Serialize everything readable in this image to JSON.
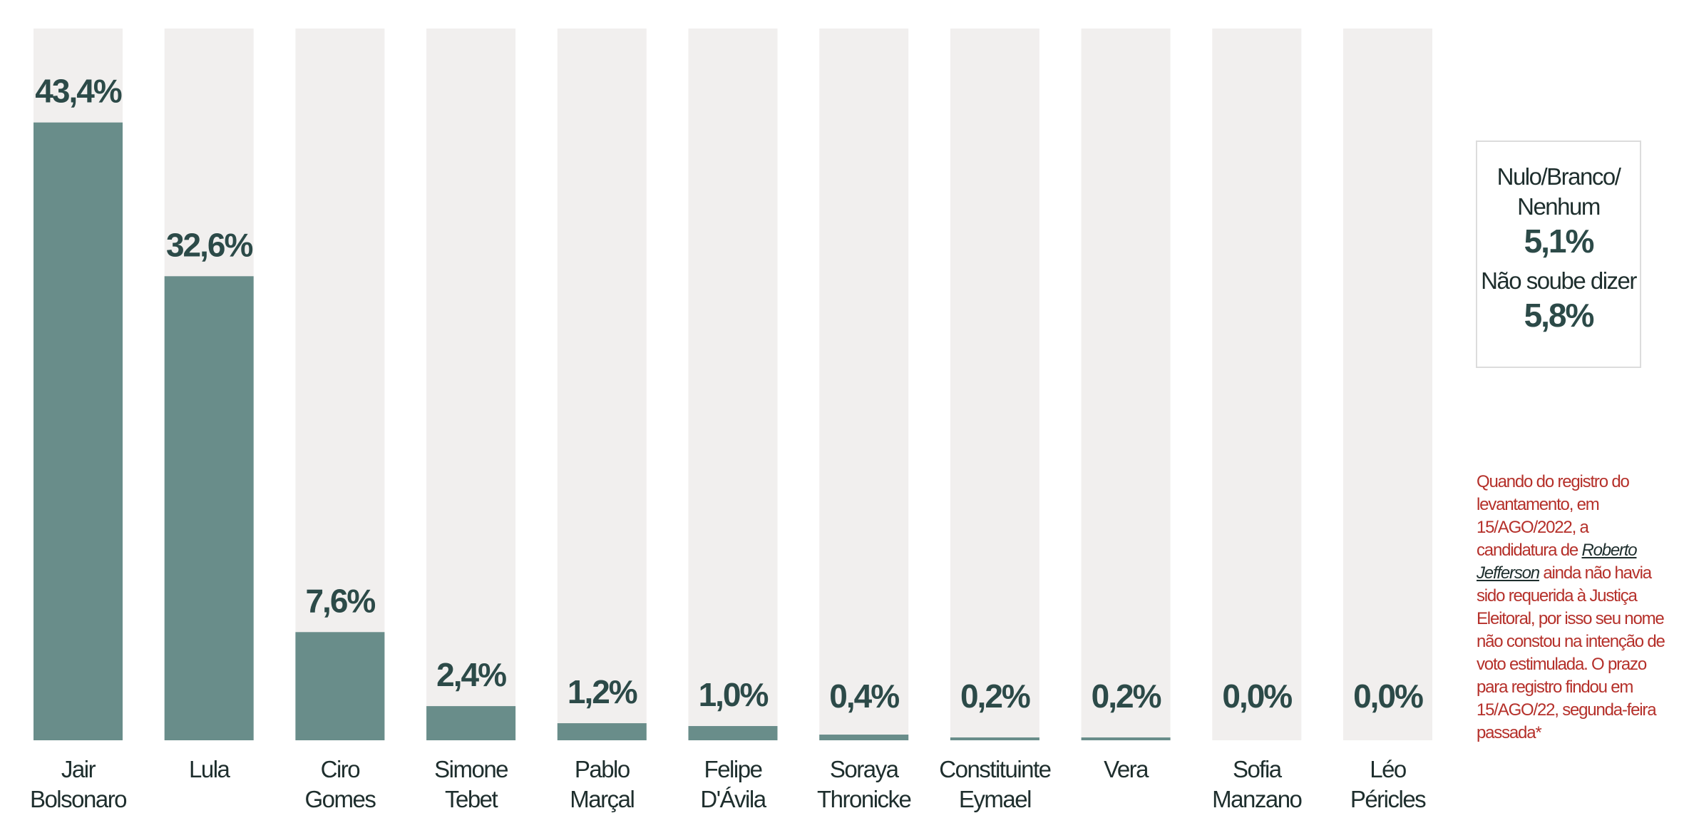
{
  "chart_data": {
    "type": "bar",
    "categories": [
      [
        "Jair",
        "Bolsonaro"
      ],
      [
        "Lula"
      ],
      [
        "Ciro",
        "Gomes"
      ],
      [
        "Simone",
        "Tebet"
      ],
      [
        "Pablo",
        "Marçal"
      ],
      [
        "Felipe",
        "D'Ávila"
      ],
      [
        "Soraya",
        "Thronicke"
      ],
      [
        "Constituinte",
        "Eymael"
      ],
      [
        "Vera"
      ],
      [
        "Sofia",
        "Manzano"
      ],
      [
        "Léo",
        "Péricles"
      ]
    ],
    "values": [
      43.4,
      32.6,
      7.6,
      2.4,
      1.2,
      1.0,
      0.4,
      0.2,
      0.2,
      0.0,
      0.0
    ],
    "value_labels": [
      "43,4%",
      "32,6%",
      "7,6%",
      "2,4%",
      "1,2%",
      "1,0%",
      "0,4%",
      "0,2%",
      "0,2%",
      "0,0%",
      "0,0%"
    ],
    "ylim": [
      0,
      50
    ],
    "colors": {
      "bar": "#698d8a",
      "track": "#f1efee",
      "value_text": "#2c4a48"
    }
  },
  "summary": {
    "label1": "Nulo/Branco/ Nenhum",
    "value1": "5,1%",
    "label2": "Não soube dizer",
    "value2": "5,8%"
  },
  "footnote": {
    "before": "Quando do registro do levantamento, em 15/AGO/2022, a candidatura de ",
    "name": "Roberto Jefferson",
    "after": " ainda não havia sido requerida à Justiça Eleitoral, por isso seu nome não constou na intenção de voto estimulada. O prazo para registro findou em 15/AGO/22, segunda-feira passada*",
    "color": "#b5302a"
  }
}
